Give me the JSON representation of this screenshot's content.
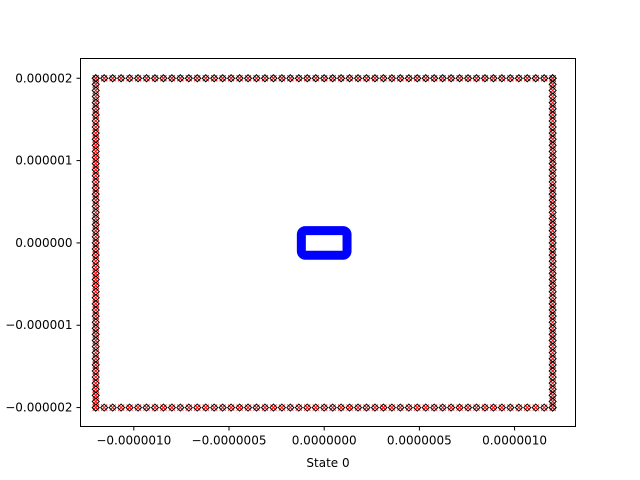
{
  "chart_data": {
    "type": "scatter",
    "title": "",
    "xlabel": "State 0",
    "ylabel": "",
    "xlim": [
      -1.28e-06,
      1.32e-06
    ],
    "ylim": [
      -2.23e-06,
      2.24e-06
    ],
    "grid": false,
    "legend": "none",
    "x_ticks": [
      -1e-06,
      -5e-07,
      0.0,
      5e-07,
      1e-06
    ],
    "x_tick_labels": [
      "−0.0000010",
      "−0.0000005",
      "0.0000000",
      "0.0000005",
      "0.0000010"
    ],
    "y_ticks": [
      -2e-06,
      -1e-06,
      0.0,
      1e-06,
      2e-06
    ],
    "y_tick_labels": [
      "−0.000002",
      "−0.000001",
      "0.000000",
      "0.000001",
      "0.000002"
    ],
    "series": [
      {
        "marker": "x",
        "color": "#ff0000",
        "shape": "rounded-rectangle-path",
        "x_range": [
          -1.2e-06,
          1.2e-06
        ],
        "y_range": [
          -2e-06,
          2e-06
        ],
        "points_per_side": 55
      },
      {
        "marker": "diamond",
        "color": "#000000",
        "shape": "rounded-rectangle-path",
        "x_range": [
          -1.2e-06,
          1.2e-06
        ],
        "y_range": [
          -2e-06,
          2e-06
        ],
        "points_per_side": 55
      },
      {
        "marker": "line",
        "color": "#0000ff",
        "shape": "rounded-rectangle-path",
        "x_range": [
          -1.2e-07,
          1.2e-07
        ],
        "y_range": [
          -1.5e-07,
          1.5e-07
        ]
      }
    ]
  }
}
